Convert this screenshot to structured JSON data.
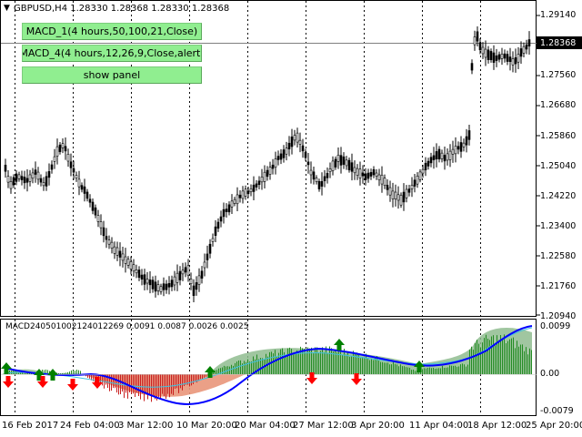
{
  "header": {
    "title": "GBPUSD,H4  1.28330 1.28368 1.28330 1.28368"
  },
  "panel_buttons": [
    {
      "label": "MACD_1(4 hours,50,100,21,Close)"
    },
    {
      "label": "MACD_4(4 hours,12,26,9,Close,alert)"
    },
    {
      "label": "show panel"
    }
  ],
  "price_axis": {
    "labels": [
      "1.29140",
      "1.28368",
      "1.27560",
      "1.26680",
      "1.25860",
      "1.25040",
      "1.24220",
      "1.23400",
      "1.22580",
      "1.21760",
      "1.20940"
    ],
    "current_price": "1.28368"
  },
  "indicator": {
    "title": "MACD240501002124012269 0.0091 0.0087 0.0026 0.0025",
    "labels": [
      "0.0099",
      "0.00",
      "-0.0079"
    ]
  },
  "time_axis": {
    "labels": [
      "16 Feb 2017",
      "24 Feb 04:00",
      "3 Mar 12:00",
      "10 Mar 20:00",
      "20 Mar 04:00",
      "27 Mar 12:00",
      "3 Apr 20:00",
      "11 Apr 04:00",
      "18 Apr 12:00",
      "25 Apr 20:00"
    ]
  },
  "colors": {
    "background": "#ffffff",
    "candles": "#000000",
    "grid": "#000000",
    "button": "#90ee90",
    "macd_signal": "#0000ff",
    "hist_green": "#228b22",
    "hist_red": "#c81e1e",
    "area_green": "#8fbc8f",
    "area_salmon": "#e9967a",
    "arrow_up": "#008000",
    "arrow_down": "#ff0000"
  },
  "icons": {
    "dropdown": "triangle-down-icon",
    "buy_signal": "arrow-up-icon",
    "sell_signal": "arrow-down-icon"
  }
}
